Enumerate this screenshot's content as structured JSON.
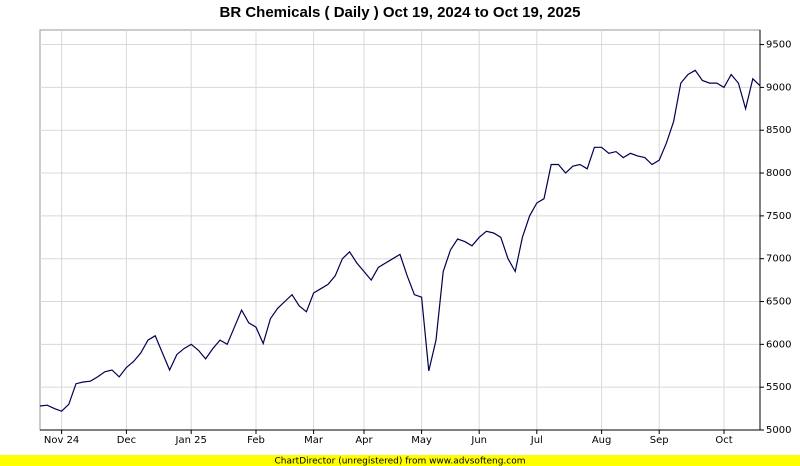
{
  "chart_data": {
    "type": "line",
    "title": "BR Chemicals ( Daily ) Oct 19, 2024 to Oct 19, 2025",
    "footer": "ChartDirector (unregistered) from www.advsofteng.com",
    "categories": [
      null,
      null,
      null,
      "Nov 24",
      null,
      null,
      null,
      null,
      null,
      null,
      null,
      null,
      "Dec",
      null,
      null,
      null,
      null,
      null,
      null,
      null,
      null,
      "Jan 25",
      null,
      null,
      null,
      null,
      null,
      null,
      null,
      null,
      "Feb",
      null,
      null,
      null,
      null,
      null,
      null,
      null,
      "Mar",
      null,
      null,
      null,
      null,
      null,
      null,
      "Apr",
      null,
      null,
      null,
      null,
      null,
      null,
      null,
      "May",
      null,
      null,
      null,
      null,
      null,
      null,
      null,
      "Jun",
      null,
      null,
      null,
      null,
      null,
      null,
      null,
      "Jul",
      null,
      null,
      null,
      null,
      null,
      null,
      null,
      null,
      "Aug",
      null,
      null,
      null,
      null,
      null,
      null,
      null,
      "Sep",
      null,
      null,
      null,
      null,
      null,
      null,
      null,
      null,
      "Oct",
      null,
      null,
      null,
      null,
      null
    ],
    "series": [
      {
        "color": "#000050",
        "values": [
          5280,
          5290,
          5250,
          5220,
          5300,
          5540,
          5560,
          5570,
          5620,
          5680,
          5700,
          5620,
          5730,
          5800,
          5900,
          6050,
          6100,
          5900,
          5700,
          5880,
          5950,
          6000,
          5930,
          5830,
          5950,
          6050,
          6000,
          6200,
          6400,
          6250,
          6200,
          6010,
          6300,
          6420,
          6500,
          6580,
          6450,
          6380,
          6600,
          6650,
          6700,
          6800,
          7000,
          7080,
          6950,
          6850,
          6750,
          6900,
          6950,
          7000,
          7050,
          6800,
          6580,
          6550,
          5690,
          6050,
          6850,
          7100,
          7230,
          7200,
          7150,
          7250,
          7320,
          7300,
          7250,
          7000,
          6850,
          7250,
          7500,
          7650,
          7700,
          8100,
          8100,
          8000,
          8080,
          8100,
          8050,
          8300,
          8300,
          8230,
          8250,
          8180,
          8230,
          8200,
          8180,
          8100,
          8150,
          8350,
          8600,
          9050,
          9150,
          9200,
          9080,
          9050,
          9050,
          9000,
          9150,
          9050,
          8750,
          9100,
          9020
        ]
      }
    ],
    "ylim": [
      5000,
      9670
    ],
    "yticks": [
      5000,
      5500,
      6000,
      6500,
      7000,
      7500,
      8000,
      8500,
      9000,
      9500
    ],
    "grid": true
  }
}
